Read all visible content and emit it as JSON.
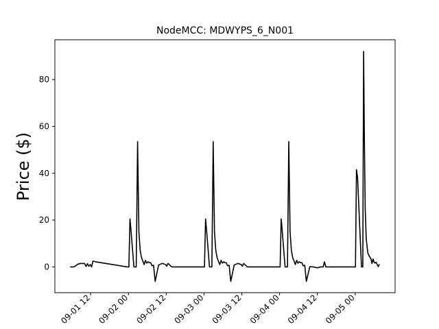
{
  "chart_data": {
    "type": "line",
    "title": "NodeMCC: MDWYPS_6_N001",
    "xlabel": "",
    "ylabel": "Price ($)",
    "ylim": [
      -11,
      97
    ],
    "yticks": [
      0,
      20,
      40,
      60,
      80
    ],
    "ytick_labels": [
      "0",
      "20",
      "40",
      "60",
      "80"
    ],
    "xlim": [
      "2018-09-01T00:40",
      "2018-09-05T12:40"
    ],
    "xticks": [
      "2018-09-01T12:00",
      "2018-09-02T00:00",
      "2018-09-02T12:00",
      "2018-09-03T00:00",
      "2018-09-03T12:00",
      "2018-09-04T00:00",
      "2018-09-04T12:00",
      "2018-09-05T00:00"
    ],
    "xtick_labels": [
      "09-01 12",
      "09-02 00",
      "09-02 12",
      "09-03 00",
      "09-03 12",
      "09-04 00",
      "09-04 12",
      "09-05 00"
    ],
    "grid": false,
    "series": [
      {
        "color": "#000000",
        "x": [
          "2018-09-01T05:30",
          "2018-09-01T06:45",
          "2018-09-01T08:00",
          "2018-09-01T08:50",
          "2018-09-01T09:35",
          "2018-09-01T10:05",
          "2018-09-01T10:35",
          "2018-09-01T11:00",
          "2018-09-01T11:25",
          "2018-09-01T11:55",
          "2018-09-01T12:20",
          "2018-09-01T12:45",
          "2018-09-01T13:35",
          "2018-09-01T23:40",
          "2018-09-02T00:10",
          "2018-09-02T00:30",
          "2018-09-02T00:45",
          "2018-09-02T01:45",
          "2018-09-02T02:30",
          "2018-09-02T02:55",
          "2018-09-02T03:20",
          "2018-09-02T03:45",
          "2018-09-02T04:10",
          "2018-09-02T04:35",
          "2018-09-02T05:00",
          "2018-09-02T05:25",
          "2018-09-02T05:50",
          "2018-09-02T06:15",
          "2018-09-02T06:40",
          "2018-09-02T07:05",
          "2018-09-02T07:30",
          "2018-09-02T08:00",
          "2018-09-02T08:30",
          "2018-09-02T09:35",
          "2018-09-02T10:45",
          "2018-09-02T11:50",
          "2018-09-02T12:10",
          "2018-09-02T12:35",
          "2018-09-02T13:35",
          "2018-09-02T13:50",
          "2018-09-02T23:40",
          "2018-09-03T00:10",
          "2018-09-03T00:30",
          "2018-09-03T00:45",
          "2018-09-03T01:45",
          "2018-09-03T02:30",
          "2018-09-03T02:55",
          "2018-09-03T03:20",
          "2018-09-03T03:45",
          "2018-09-03T04:10",
          "2018-09-03T04:35",
          "2018-09-03T05:00",
          "2018-09-03T05:25",
          "2018-09-03T05:50",
          "2018-09-03T06:15",
          "2018-09-03T06:40",
          "2018-09-03T07:05",
          "2018-09-03T07:30",
          "2018-09-03T08:00",
          "2018-09-03T08:30",
          "2018-09-03T09:35",
          "2018-09-03T10:45",
          "2018-09-03T11:50",
          "2018-09-03T12:10",
          "2018-09-03T12:35",
          "2018-09-03T13:35",
          "2018-09-03T13:50",
          "2018-09-03T23:40",
          "2018-09-04T00:10",
          "2018-09-04T00:30",
          "2018-09-04T00:45",
          "2018-09-04T01:45",
          "2018-09-04T02:30",
          "2018-09-04T02:55",
          "2018-09-04T03:20",
          "2018-09-04T03:45",
          "2018-09-04T04:10",
          "2018-09-04T04:35",
          "2018-09-04T05:00",
          "2018-09-04T05:25",
          "2018-09-04T05:50",
          "2018-09-04T06:15",
          "2018-09-04T06:40",
          "2018-09-04T07:05",
          "2018-09-04T07:30",
          "2018-09-04T08:00",
          "2018-09-04T08:30",
          "2018-09-04T09:35",
          "2018-09-04T10:45",
          "2018-09-04T12:00",
          "2018-09-04T13:00",
          "2018-09-04T13:50",
          "2018-09-04T14:15",
          "2018-09-04T14:40",
          "2018-09-04T23:40",
          "2018-09-05T00:05",
          "2018-09-05T00:25",
          "2018-09-05T00:45",
          "2018-09-05T02:00",
          "2018-09-05T02:25",
          "2018-09-05T02:40",
          "2018-09-05T02:55",
          "2018-09-05T03:10",
          "2018-09-05T03:30",
          "2018-09-05T04:00",
          "2018-09-05T04:30",
          "2018-09-05T05:00",
          "2018-09-05T05:20",
          "2018-09-05T05:40",
          "2018-09-05T06:00",
          "2018-09-05T06:20",
          "2018-09-05T06:40",
          "2018-09-05T07:00",
          "2018-09-05T07:20",
          "2018-09-05T07:40"
        ],
        "y": [
          0,
          0,
          1.2,
          1.5,
          1.4,
          1.5,
          0.2,
          1.4,
          0.3,
          1.0,
          0,
          2.5,
          2.2,
          0,
          0,
          20.5,
          17,
          0,
          0,
          53.5,
          15,
          7,
          4,
          2.5,
          1.0,
          2.8,
          1.6,
          2.2,
          1.8,
          1.8,
          0.5,
          0.7,
          -6.2,
          0.8,
          1.5,
          1.0,
          0.3,
          1.5,
          0.2,
          0,
          0,
          0,
          20.5,
          17,
          0,
          0,
          53.5,
          15,
          7,
          4,
          2.5,
          1.0,
          2.8,
          1.6,
          2.2,
          1.8,
          1.8,
          0.5,
          0.7,
          -6.2,
          0.8,
          1.5,
          1.0,
          0.3,
          1.5,
          0.2,
          0,
          0,
          0,
          20.5,
          17,
          0,
          0,
          53.5,
          15,
          7,
          4,
          2.5,
          1.0,
          2.8,
          1.6,
          2.2,
          1.8,
          1.8,
          0.5,
          0.7,
          -6.2,
          0.1,
          0,
          -0.4,
          0,
          0,
          2.2,
          0,
          0,
          0,
          41.5,
          38,
          0,
          0,
          92,
          55,
          25,
          12,
          6,
          4.5,
          3.5,
          1.5,
          3.4,
          2.0,
          1.6,
          2.0,
          0.9,
          0.1,
          1.2
        ]
      }
    ]
  }
}
